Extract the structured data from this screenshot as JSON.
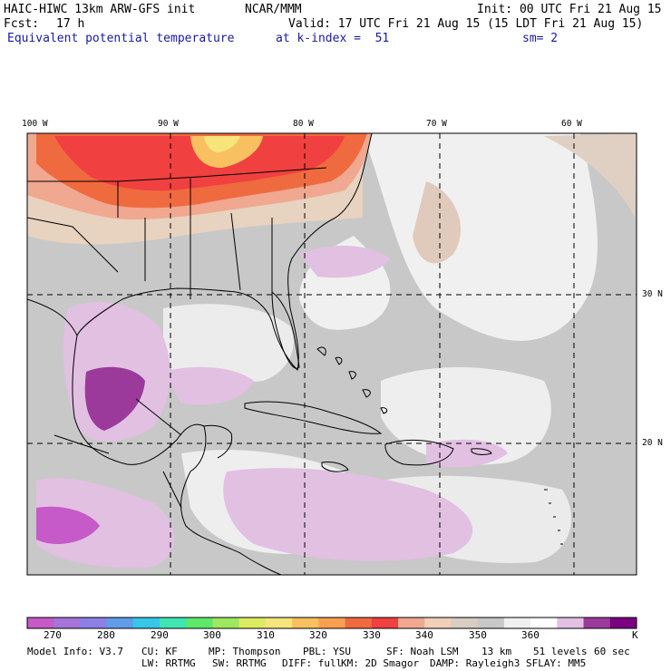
{
  "header": {
    "model_title": "HAIC-HIWC 13km ARW-GFS init",
    "org": "NCAR/MMM",
    "init": "Init: 00 UTC Fri 21 Aug 15",
    "fcst_label": "Fcst:",
    "fcst_value": "17 h",
    "valid": "Valid: 17 UTC Fri 21 Aug 15 (15 LDT Fri 21 Aug 15)",
    "field": "Equivalent potential temperature",
    "level": "at k-index =  51",
    "smoothing": "sm= 2"
  },
  "map": {
    "lon_labels": [
      "100 W",
      "90 W",
      "80 W",
      "70 W",
      "60 W"
    ],
    "lat_labels": [
      "30 N",
      "20 N"
    ]
  },
  "colorbar": {
    "ticks": [
      "270",
      "280",
      "290",
      "300",
      "310",
      "320",
      "330",
      "340",
      "350",
      "360"
    ],
    "unit": "K",
    "colors": [
      "#c65ac8",
      "#a474d8",
      "#8c80e6",
      "#5f9de9",
      "#36c7e9",
      "#40e6b2",
      "#5ee86a",
      "#9ee860",
      "#dcec62",
      "#f6e47c",
      "#f8c060",
      "#f8a050",
      "#f06a40",
      "#f04040",
      "#f0a890",
      "#f0d0b8",
      "#d8cdc2",
      "#c8c8c8",
      "#f0f0f0",
      "#ffffff",
      "#e2c0e2",
      "#9c3a9c",
      "#7a0080"
    ]
  },
  "footer": {
    "line1": [
      "Model Info: V3.7",
      "CU: KF",
      "MP: Thompson",
      "PBL: YSU",
      "SF: Noah LSM",
      "13 km",
      "51 levels",
      "60 sec"
    ],
    "line2": [
      "LW: RRTMG",
      "SW: RRTMG",
      "DIFF: full",
      "KM: 2D Smagor",
      "DAMP: Rayleigh3",
      "SFLAY: MM5"
    ]
  }
}
